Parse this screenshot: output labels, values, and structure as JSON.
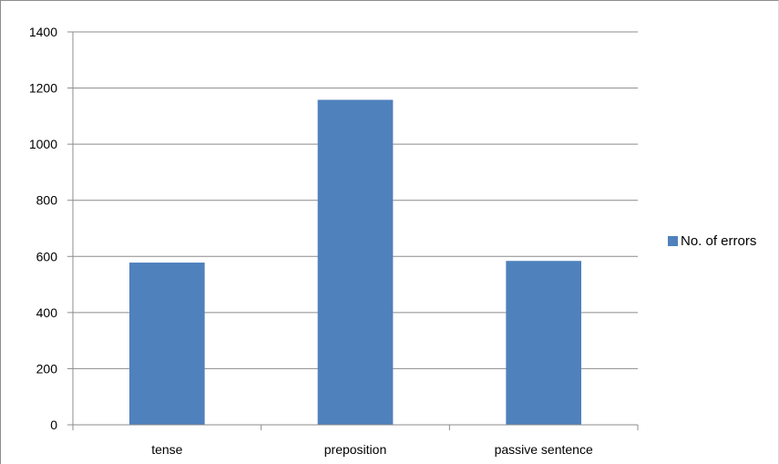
{
  "chart_data": {
    "type": "bar",
    "categories": [
      "tense",
      "preposition",
      "passive sentence"
    ],
    "series": [
      {
        "name": "No. of errors",
        "values": [
          578,
          1158,
          584
        ],
        "color": "#4f81bd"
      }
    ],
    "ylim": [
      0,
      1400
    ],
    "yticks": [
      0,
      200,
      400,
      600,
      800,
      1000,
      1200,
      1400
    ],
    "grid": true,
    "legend_position": "right",
    "colors": {
      "gridline": "#8c8c8c",
      "axis": "#8c8c8c",
      "bar": "#4f81bd"
    }
  }
}
